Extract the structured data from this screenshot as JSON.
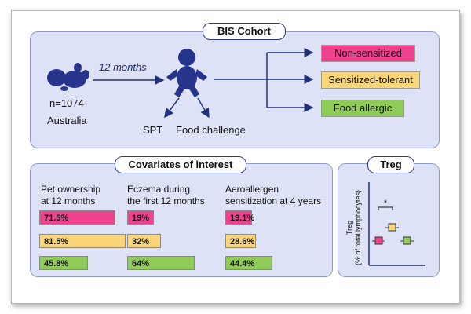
{
  "cohort": {
    "title": "BIS Cohort",
    "timepoint": "12 months",
    "n": "n=1074",
    "location": "Australia",
    "tests": [
      "SPT",
      "Food challenge"
    ],
    "outcomes": [
      {
        "label": "Non-sensitized",
        "color": "#f0418f"
      },
      {
        "label": "Sensitized-tolerant",
        "color": "#fbd679"
      },
      {
        "label": "Food allergic",
        "color": "#8fcc57"
      }
    ]
  },
  "covariates": {
    "title": "Covariates of interest",
    "columns": [
      {
        "title_line1": "Pet ownership",
        "title_line2": "at 12 months",
        "values": [
          71.5,
          81.5,
          45.8
        ],
        "labels": [
          "71.5%",
          "81.5%",
          "45.8%"
        ]
      },
      {
        "title_line1": "Eczema during",
        "title_line2": "the first 12 months",
        "values": [
          19,
          32,
          64
        ],
        "labels": [
          "19%",
          "32%",
          "64%"
        ]
      },
      {
        "title_line1": "Aeroallergen",
        "title_line2": "sensitization at 4 years",
        "values": [
          19.1,
          28.6,
          44.4
        ],
        "labels": [
          "19.1%",
          "28.6%",
          "44.4%"
        ]
      }
    ]
  },
  "treg": {
    "title": "Treg",
    "ylabel_line1": "Treg",
    "ylabel_line2": "(% of total lymphocytes)",
    "significance": "*"
  },
  "chart_data": {
    "type": "bar",
    "categories": [
      "Non-sensitized",
      "Sensitized-tolerant",
      "Food allergic"
    ],
    "series": [
      {
        "name": "Pet ownership at 12 months",
        "values": [
          71.5,
          81.5,
          45.8
        ]
      },
      {
        "name": "Eczema during the first 12 months",
        "values": [
          19,
          32,
          64
        ]
      },
      {
        "name": "Aeroallergen sensitization at 4 years",
        "values": [
          19.1,
          28.6,
          44.4
        ]
      }
    ],
    "title": "Covariates of interest",
    "xlabel": "",
    "ylabel": ""
  }
}
